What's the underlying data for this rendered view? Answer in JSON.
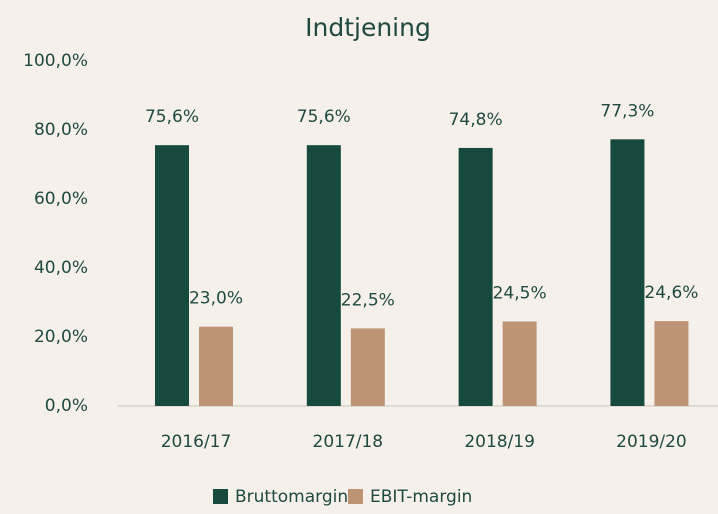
{
  "chart_data": {
    "type": "bar",
    "title": "Indtjening",
    "categories": [
      "2016/17",
      "2017/18",
      "2018/19",
      "2019/20"
    ],
    "series": [
      {
        "name": "Bruttomargin",
        "color": "#174a3f",
        "values": [
          75.6,
          75.6,
          74.8,
          77.3
        ],
        "value_labels": [
          "75,6%",
          "75,6%",
          "74,8%",
          "77,3%"
        ]
      },
      {
        "name": "EBIT-margin",
        "color": "#bf9474",
        "values": [
          23.0,
          22.5,
          24.5,
          24.6
        ],
        "value_labels": [
          "23,0%",
          "22,5%",
          "24,5%",
          "24,6%"
        ]
      }
    ],
    "ylim": [
      0,
      100
    ],
    "yticks": [
      {
        "value": 0,
        "label": "0,0%"
      },
      {
        "value": 20,
        "label": "20,0%"
      },
      {
        "value": 40,
        "label": "40,0%"
      },
      {
        "value": 60,
        "label": "60,0%"
      },
      {
        "value": 80,
        "label": "80,0%"
      },
      {
        "value": 100,
        "label": "100,0%"
      }
    ],
    "grid": false,
    "legend": "bottom"
  }
}
